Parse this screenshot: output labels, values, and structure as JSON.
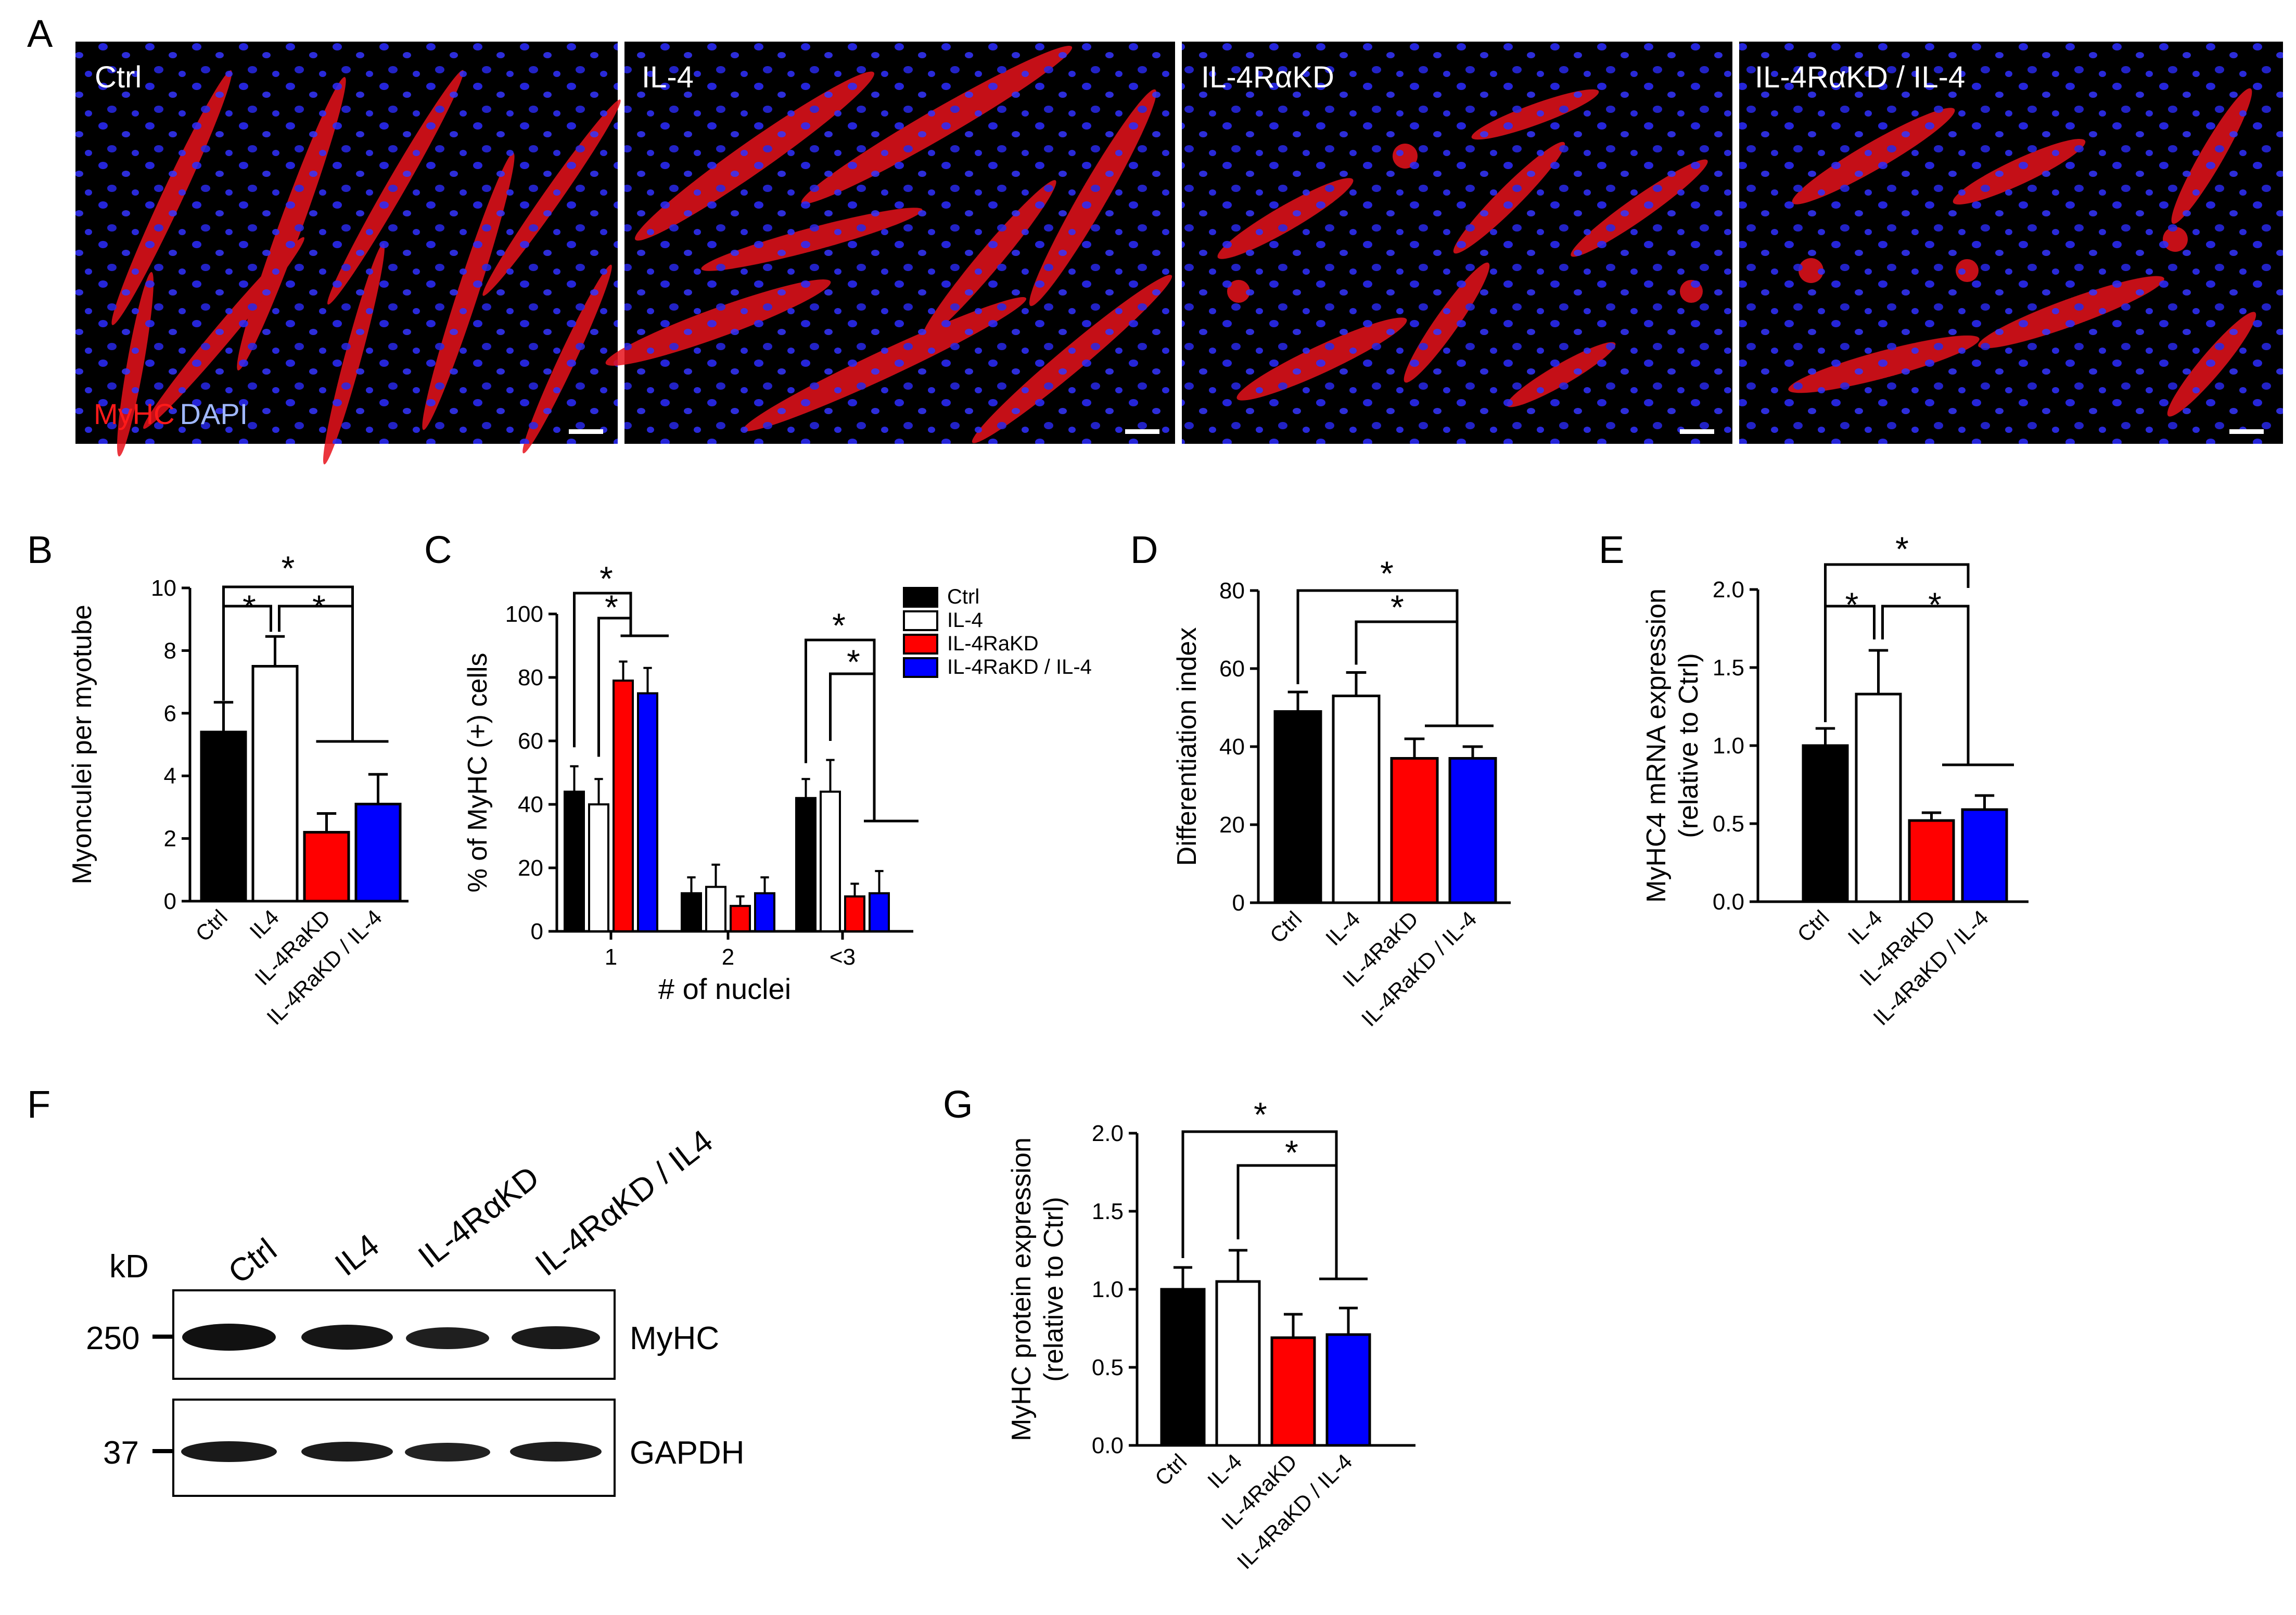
{
  "panel_letters": [
    "A",
    "B",
    "C",
    "D",
    "E",
    "F",
    "G"
  ],
  "microscopy": {
    "panels": [
      "Ctrl",
      "IL-4",
      "IL-4RαKD",
      "IL-4RαKD / IL-4"
    ],
    "stain_myhc": "MyHC",
    "stain_dapi": "DAPI",
    "colors": {
      "myhc": "#ff1a1a",
      "dapi": "#2b2bff",
      "background": "#000000"
    }
  },
  "western_blot": {
    "lanes": [
      "Ctrl",
      "IL4",
      "IL-4RαKD",
      "IL-4RαKD / IL4"
    ],
    "kd_label": "kD",
    "markers": [
      "250",
      "37"
    ],
    "proteins": [
      "MyHC",
      "GAPDH"
    ]
  },
  "chart_data": [
    {
      "panel": "B",
      "type": "bar",
      "categories": [
        "Ctrl",
        "IL4",
        "IL-4RaKD",
        "IL-4RaKD / IL-4"
      ],
      "values": [
        5.4,
        7.5,
        2.2,
        3.1
      ],
      "errors": [
        0.95,
        0.95,
        0.6,
        0.95
      ],
      "ylabel": "Myonculei per myotube",
      "ylim": [
        0,
        10
      ],
      "yticks": [
        "0",
        "2",
        "4",
        "6",
        "8",
        "10"
      ],
      "significance": [
        "*",
        "*",
        "*"
      ]
    },
    {
      "panel": "C",
      "type": "bar",
      "categories": [
        "1",
        "2",
        "<3"
      ],
      "series": [
        {
          "name": "Ctrl",
          "values": [
            44,
            12,
            42
          ],
          "errors": [
            8,
            5,
            6
          ]
        },
        {
          "name": "IL-4",
          "values": [
            40,
            14,
            44
          ],
          "errors": [
            8,
            7,
            10
          ]
        },
        {
          "name": "IL-4RaKD",
          "values": [
            79,
            8,
            11
          ],
          "errors": [
            6,
            3,
            4
          ]
        },
        {
          "name": "IL-4RaKD / IL-4",
          "values": [
            75,
            12,
            12
          ],
          "errors": [
            8,
            5,
            7
          ]
        }
      ],
      "ylabel": "% of  MyHC (+) cells",
      "xlabel": "# of nuclei",
      "ylim": [
        0,
        100
      ],
      "yticks": [
        "0",
        "20",
        "40",
        "60",
        "80",
        "100"
      ],
      "legend": "top-right",
      "significance": [
        "*",
        "*",
        "*",
        "*"
      ]
    },
    {
      "panel": "D",
      "type": "bar",
      "categories": [
        "Ctrl",
        "IL-4",
        "IL-4RaKD",
        "IL-4RaKD / IL-4"
      ],
      "values": [
        49,
        53,
        37,
        37
      ],
      "errors": [
        5,
        6,
        5,
        3
      ],
      "ylabel": "Differentiation index",
      "ylim": [
        0,
        80
      ],
      "yticks": [
        "0",
        "20",
        "40",
        "60",
        "80"
      ],
      "significance": [
        "*",
        "*"
      ]
    },
    {
      "panel": "E",
      "type": "bar",
      "categories": [
        "Ctrl",
        "IL-4",
        "IL-4RaKD",
        "IL-4RaKD / IL-4"
      ],
      "values": [
        1.0,
        1.33,
        0.52,
        0.59
      ],
      "errors": [
        0.11,
        0.28,
        0.05,
        0.09
      ],
      "ylabel": "MyHC4 mRNA expression",
      "ylabel2": "(relative to Ctrl)",
      "ylim": [
        0,
        2.0
      ],
      "yticks": [
        "0.0",
        "0.5",
        "1.0",
        "1.5",
        "2.0"
      ],
      "significance": [
        "*",
        "*",
        "*"
      ]
    },
    {
      "panel": "G",
      "type": "bar",
      "categories": [
        "Ctrl",
        "IL-4",
        "IL-4RaKD",
        "IL-4RaKD / IL-4"
      ],
      "values": [
        1.0,
        1.05,
        0.69,
        0.71
      ],
      "errors": [
        0.14,
        0.2,
        0.15,
        0.17
      ],
      "ylabel": "MyHC protein expression",
      "ylabel2": "(relative to Ctrl)",
      "ylim": [
        0,
        2.0
      ],
      "yticks": [
        "0.0",
        "0.5",
        "1.0",
        "1.5",
        "2.0"
      ],
      "significance": [
        "*",
        "*"
      ]
    }
  ],
  "group_colors": [
    "#000000",
    "#ffffff",
    "#ff0000",
    "#0000ff"
  ]
}
